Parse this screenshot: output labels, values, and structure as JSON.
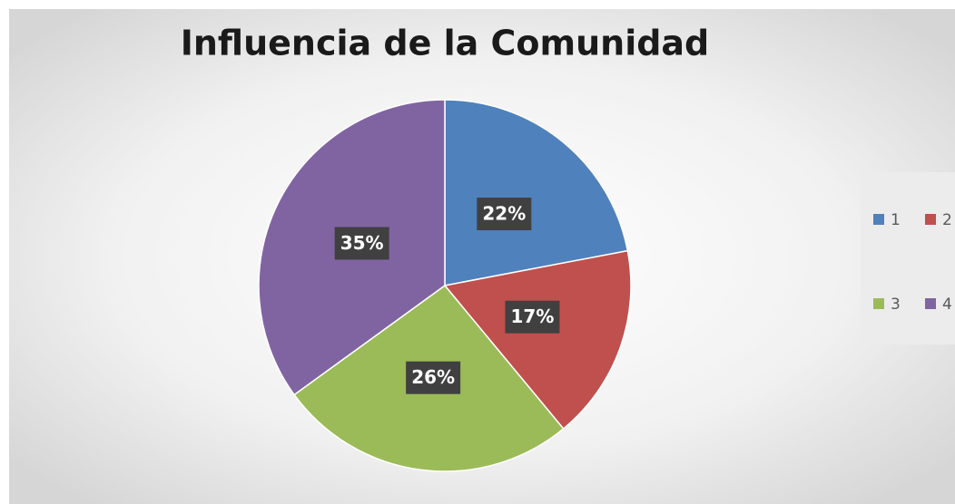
{
  "chart_data": {
    "type": "pie",
    "title": "Influencia de la Comunidad",
    "categories": [
      "1",
      "2",
      "3",
      "4"
    ],
    "values": [
      22,
      17,
      26,
      35
    ],
    "value_labels": [
      "22%",
      "17%",
      "26%",
      "35%"
    ],
    "colors": [
      "#4f81bd",
      "#c0504d",
      "#9bbb59",
      "#8064a2"
    ],
    "legend": "right"
  }
}
